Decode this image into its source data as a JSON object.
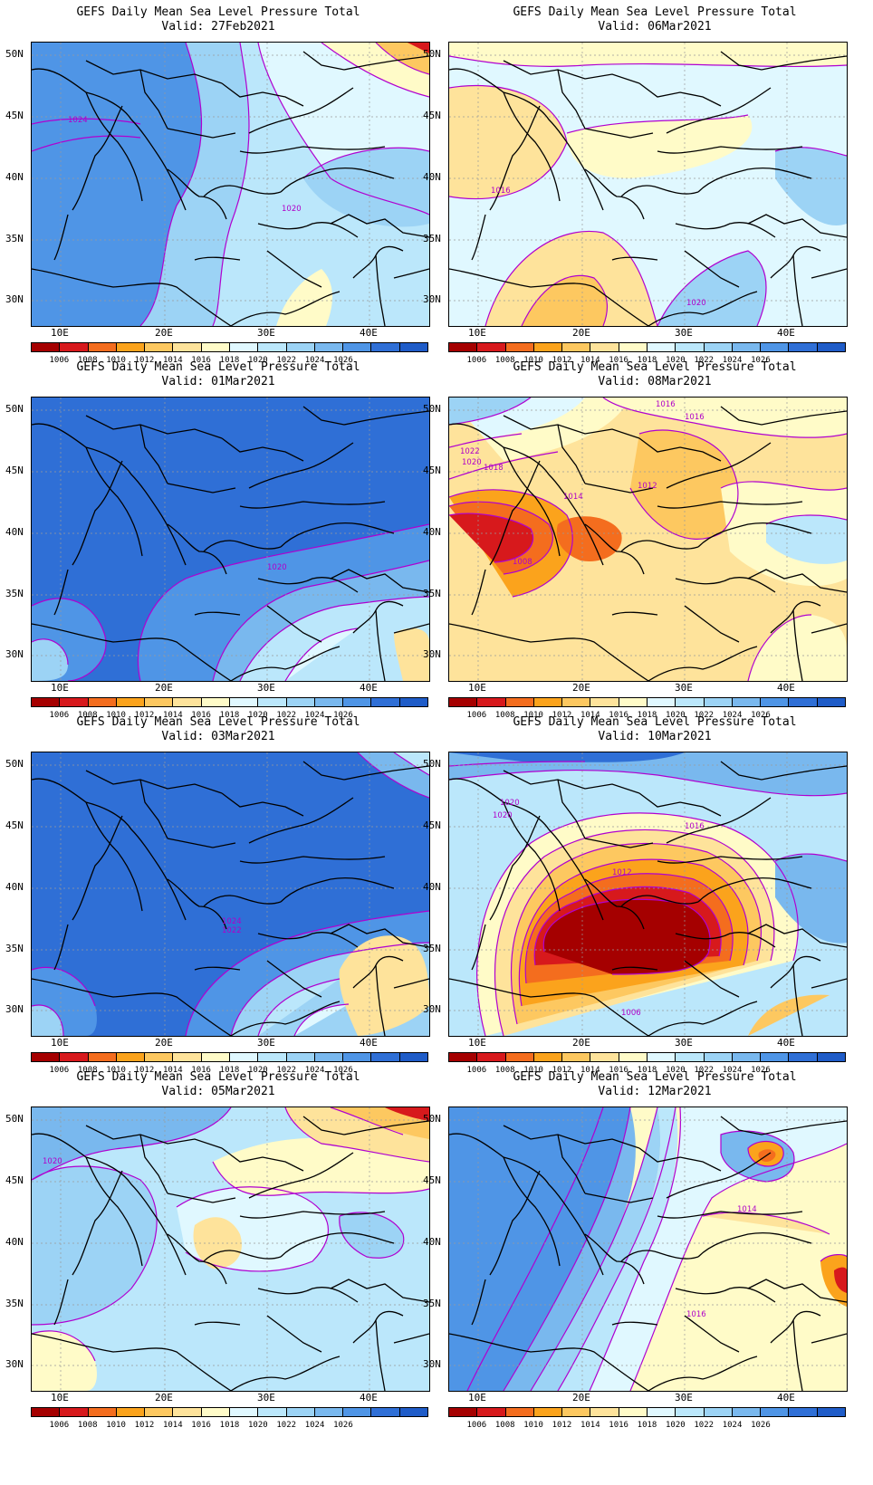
{
  "colorbar": {
    "colors": [
      "#a50000",
      "#d7191c",
      "#f46d1e",
      "#fba31c",
      "#fdc860",
      "#fee39b",
      "#fffbc8",
      "#e0f8ff",
      "#bbe7fb",
      "#9cd3f5",
      "#79b8ee",
      "#4f95e6",
      "#2f6fd6",
      "#1f5cc8"
    ],
    "labels": [
      "1006",
      "1008",
      "1010",
      "1012",
      "1014",
      "1016",
      "1018",
      "1020",
      "1022",
      "1024",
      "1026"
    ]
  },
  "axes": {
    "lat_labels": [
      "50N",
      "45N",
      "40N",
      "35N",
      "30N"
    ],
    "lon_labels": [
      "10E",
      "20E",
      "30E",
      "40E"
    ]
  },
  "panels": [
    {
      "title": "GEFS Daily Mean Sea Level Pressure Total",
      "valid": "Valid: 27Feb2021",
      "contour_labels": [
        "1024",
        "1020"
      ],
      "regime": "high-west"
    },
    {
      "title": "GEFS Daily Mean Sea Level Pressure Total",
      "valid": "Valid: 06Mar2021",
      "contour_labels": [
        "1016",
        "1020"
      ],
      "regime": "neutral"
    },
    {
      "title": "GEFS Daily Mean Sea Level Pressure Total",
      "valid": "Valid: 01Mar2021",
      "contour_labels": [
        "1020"
      ],
      "regime": "high"
    },
    {
      "title": "GEFS Daily Mean Sea Level Pressure Total",
      "valid": "Valid: 08Mar2021",
      "contour_labels": [
        "1016",
        "1016",
        "1022",
        "1020",
        "1018",
        "1014",
        "1012",
        "1008"
      ],
      "regime": "low-west"
    },
    {
      "title": "GEFS Daily Mean Sea Level Pressure Total",
      "valid": "Valid: 03Mar2021",
      "contour_labels": [
        "1024",
        "1022"
      ],
      "regime": "high-strong"
    },
    {
      "title": "GEFS Daily Mean Sea Level Pressure Total",
      "valid": "Valid: 10Mar2021",
      "contour_labels": [
        "1020",
        "1020",
        "1016",
        "1012",
        "1006"
      ],
      "regime": "low-deep"
    },
    {
      "title": "GEFS Daily Mean Sea Level Pressure Total",
      "valid": "Valid: 05Mar2021",
      "contour_labels": [
        "1020"
      ],
      "regime": "mixed"
    },
    {
      "title": "GEFS Daily Mean Sea Level Pressure Total",
      "valid": "Valid: 12Mar2021",
      "contour_labels": [
        "1014",
        "1016"
      ],
      "regime": "high-west-low-north"
    }
  ]
}
